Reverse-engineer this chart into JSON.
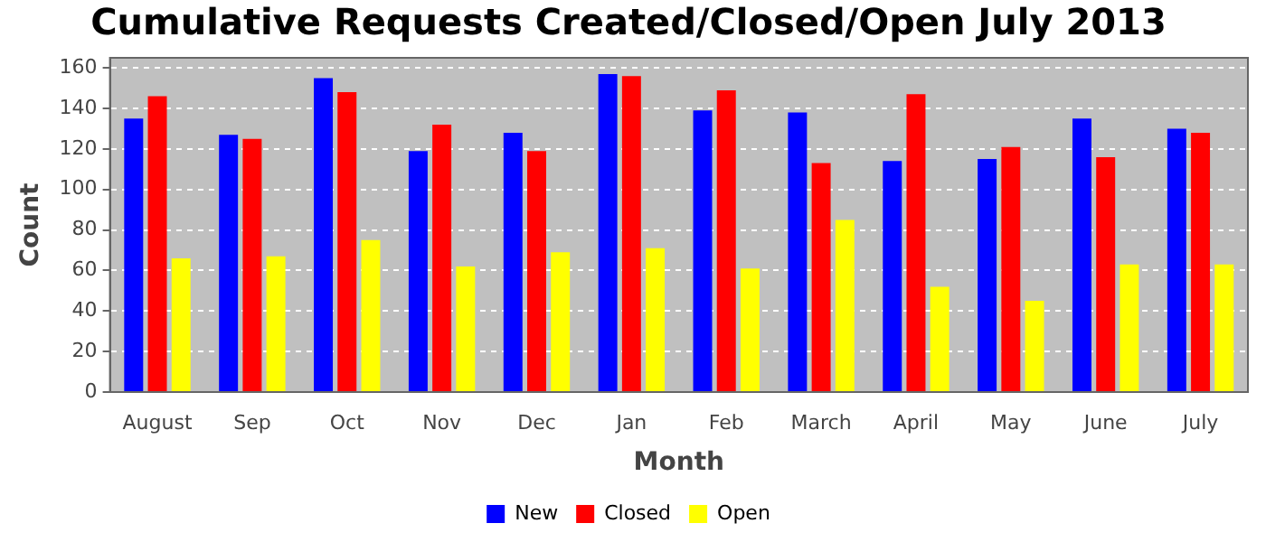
{
  "chart_data": {
    "type": "bar",
    "title": "Cumulative Requests Created/Closed/Open July 2013",
    "xlabel": "Month",
    "ylabel": "Count",
    "categories": [
      "August",
      "Sep",
      "Oct",
      "Nov",
      "Dec",
      "Jan",
      "Feb",
      "March",
      "April",
      "May",
      "June",
      "July"
    ],
    "series": [
      {
        "name": "New",
        "color": "#0000ff",
        "values": [
          135,
          127,
          155,
          119,
          128,
          157,
          139,
          138,
          114,
          115,
          135,
          130
        ]
      },
      {
        "name": "Closed",
        "color": "#ff0000",
        "values": [
          146,
          125,
          148,
          132,
          119,
          156,
          149,
          113,
          147,
          121,
          116,
          128
        ]
      },
      {
        "name": "Open",
        "color": "#ffff00",
        "values": [
          66,
          67,
          75,
          62,
          69,
          71,
          61,
          85,
          52,
          45,
          63,
          63
        ]
      }
    ],
    "ylim": [
      0,
      165
    ],
    "yticks": [
      0,
      20,
      40,
      60,
      80,
      100,
      120,
      140,
      160
    ],
    "grid": "y",
    "legend": "bottom"
  }
}
